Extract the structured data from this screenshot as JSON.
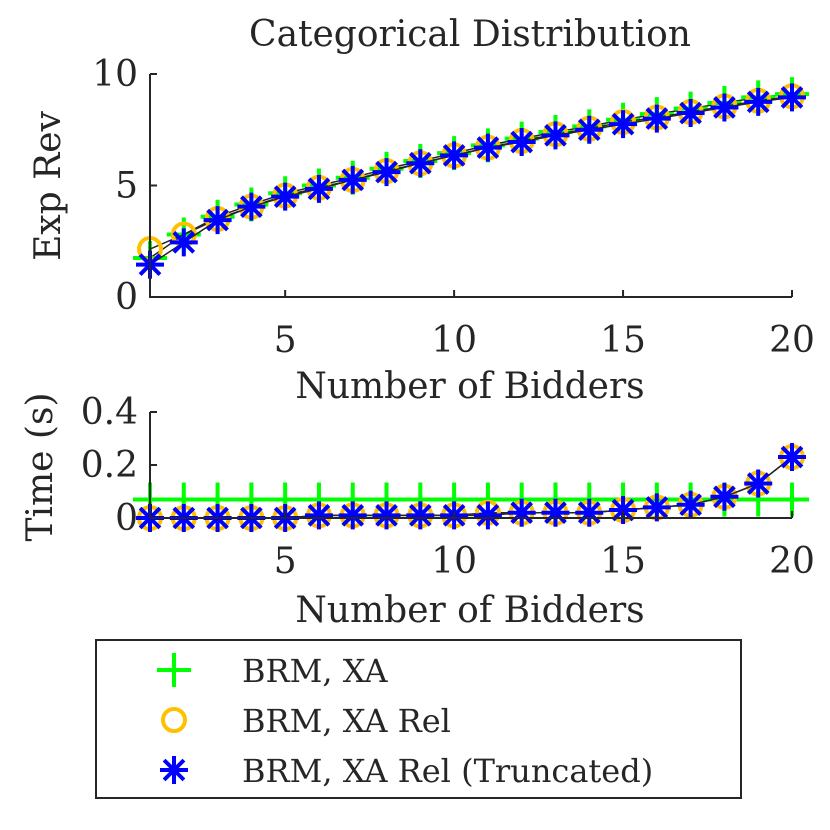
{
  "title": "Categorical Distribution",
  "colors": {
    "xa": "#00ff00",
    "xa_rel": "#ffc000",
    "xa_rel_trunc": "#0000ff",
    "axis": "#262626"
  },
  "legend": {
    "placement": "bottom-outside",
    "entries": [
      {
        "label": "BRM, XA",
        "marker": "plus",
        "color": "#00ff00"
      },
      {
        "label": "BRM, XA Rel",
        "marker": "circle",
        "color": "#ffc000"
      },
      {
        "label": "BRM, XA Rel (Truncated)",
        "marker": "asterisk",
        "color": "#0000ff"
      }
    ]
  },
  "chart_data": [
    {
      "type": "scatter",
      "title": "Categorical Distribution",
      "xlabel": "Number of Bidders",
      "ylabel": "Exp Rev",
      "xlim": [
        1,
        20
      ],
      "ylim": [
        0,
        10
      ],
      "xticks": [
        5,
        10,
        15,
        20
      ],
      "yticks": [
        0,
        5,
        10
      ],
      "grid": false,
      "x": [
        1,
        2,
        3,
        4,
        5,
        6,
        7,
        8,
        9,
        10,
        11,
        12,
        13,
        14,
        15,
        16,
        17,
        18,
        19,
        20
      ],
      "series": [
        {
          "name": "BRM, XA",
          "marker": "plus",
          "color": "#00ff00",
          "values": [
            1.75,
            2.8,
            3.6,
            4.15,
            4.65,
            5.0,
            5.35,
            5.75,
            6.1,
            6.45,
            6.8,
            7.1,
            7.4,
            7.65,
            7.95,
            8.2,
            8.45,
            8.7,
            8.95,
            9.1
          ]
        },
        {
          "name": "BRM, XA Rel",
          "marker": "circle",
          "color": "#ffc000",
          "values": [
            2.15,
            2.8,
            3.5,
            4.05,
            4.55,
            4.9,
            5.25,
            5.65,
            6.0,
            6.35,
            6.7,
            7.0,
            7.3,
            7.55,
            7.85,
            8.05,
            8.3,
            8.55,
            8.8,
            9.0
          ]
        },
        {
          "name": "BRM, XA Rel (Truncated)",
          "marker": "asterisk",
          "color": "#0000ff",
          "values": [
            1.45,
            2.45,
            3.45,
            4.05,
            4.5,
            4.85,
            5.25,
            5.6,
            6.0,
            6.35,
            6.7,
            6.95,
            7.25,
            7.5,
            7.75,
            8.0,
            8.25,
            8.5,
            8.75,
            8.95
          ]
        }
      ]
    },
    {
      "type": "scatter",
      "title": "",
      "xlabel": "Number of Bidders",
      "ylabel": "Time (s)",
      "xlim": [
        1,
        20
      ],
      "ylim": [
        0,
        0.4
      ],
      "xticks": [
        5,
        10,
        15,
        20
      ],
      "yticks": [
        0,
        0.2,
        0.4
      ],
      "grid": false,
      "x": [
        1,
        2,
        3,
        4,
        5,
        6,
        7,
        8,
        9,
        10,
        11,
        12,
        13,
        14,
        15,
        16,
        17,
        18,
        19,
        20
      ],
      "series": [
        {
          "name": "BRM, XA",
          "marker": "plus",
          "color": "#00ff00",
          "values": [
            0.07,
            0.07,
            0.07,
            0.07,
            0.07,
            0.07,
            0.07,
            0.07,
            0.07,
            0.07,
            0.07,
            0.07,
            0.07,
            0.07,
            0.07,
            0.07,
            0.07,
            0.07,
            0.07,
            0.07
          ]
        },
        {
          "name": "BRM, XA Rel",
          "marker": "circle",
          "color": "#ffc000",
          "values": [
            0.0,
            0.0,
            0.0,
            0.0,
            0.0,
            0.01,
            0.01,
            0.01,
            0.01,
            0.01,
            0.02,
            0.02,
            0.02,
            0.02,
            0.03,
            0.04,
            0.05,
            0.08,
            0.13,
            0.23
          ]
        },
        {
          "name": "BRM, XA Rel (Truncated)",
          "marker": "asterisk",
          "color": "#0000ff",
          "values": [
            0.0,
            0.0,
            0.0,
            0.0,
            0.0,
            0.01,
            0.01,
            0.01,
            0.01,
            0.01,
            0.01,
            0.02,
            0.02,
            0.02,
            0.03,
            0.04,
            0.05,
            0.08,
            0.13,
            0.23
          ]
        }
      ]
    }
  ]
}
